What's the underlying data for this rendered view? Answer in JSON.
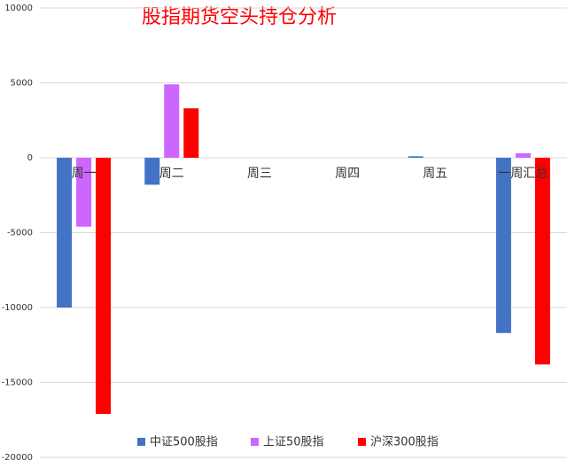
{
  "chart_data": {
    "type": "bar",
    "title": "股指期货空头持仓分析",
    "categories": [
      "周一",
      "周二",
      "周三",
      "周四",
      "周五",
      "一周汇总"
    ],
    "series": [
      {
        "name": "中证500股指",
        "color": "#4472c4",
        "values": [
          -10000,
          -1800,
          0,
          0,
          100,
          -11700
        ]
      },
      {
        "name": "上证50股指",
        "color": "#cc66ff",
        "values": [
          -4600,
          4900,
          0,
          0,
          0,
          300
        ]
      },
      {
        "name": "沪深300股指",
        "color": "#ff0000",
        "values": [
          -17100,
          3300,
          0,
          0,
          0,
          -13800
        ]
      }
    ],
    "ylim": [
      -20000,
      10000
    ],
    "yticks": [
      -20000,
      -15000,
      -10000,
      -5000,
      0,
      5000,
      10000
    ],
    "grid": true,
    "legend": "bottom"
  }
}
